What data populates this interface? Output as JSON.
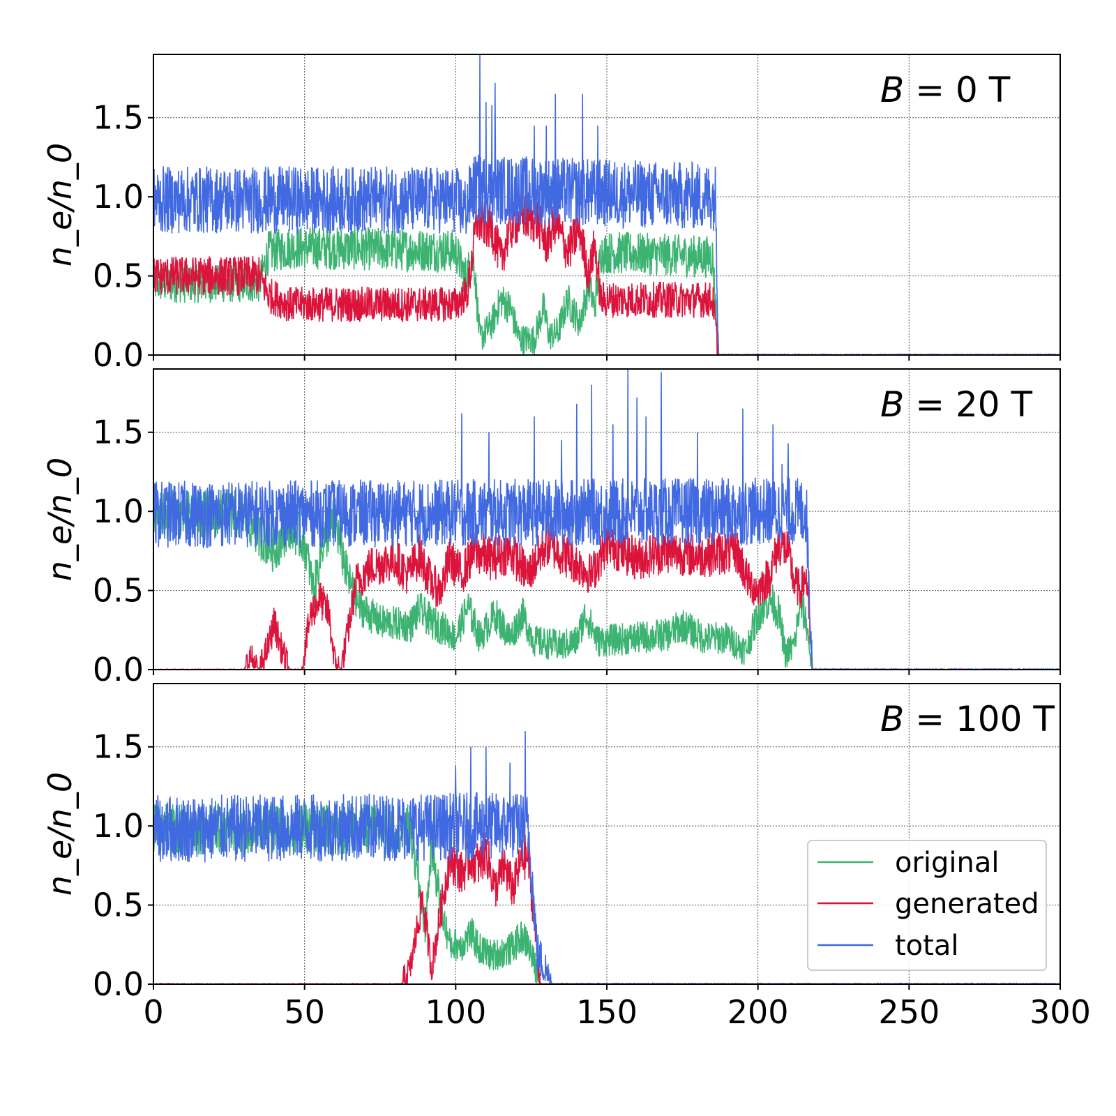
{
  "chart_data": [
    {
      "type": "line",
      "annotation": "B = 0 T",
      "ylabel": "n_e/n_0",
      "xlim": [
        0,
        300
      ],
      "ylim": [
        0,
        1.9
      ],
      "yticks": [
        "0.0",
        "0.5",
        "1.0",
        "1.5"
      ],
      "grid": true,
      "series": [
        {
          "name": "original",
          "color": "#3cb371",
          "points": [
            [
              0,
              0.45
            ],
            [
              35,
              0.45
            ],
            [
              38,
              0.65
            ],
            [
              45,
              0.68
            ],
            [
              100,
              0.66
            ],
            [
              103,
              0.5
            ],
            [
              106,
              0.6
            ],
            [
              108,
              0.1
            ],
            [
              112,
              0.2
            ],
            [
              115,
              0.35
            ],
            [
              118,
              0.3
            ],
            [
              121,
              0.1
            ],
            [
              126,
              0.1
            ],
            [
              129,
              0.3
            ],
            [
              131,
              0.12
            ],
            [
              134,
              0.15
            ],
            [
              137,
              0.35
            ],
            [
              141,
              0.2
            ],
            [
              144,
              0.45
            ],
            [
              146,
              0.3
            ],
            [
              148,
              0.65
            ],
            [
              185,
              0.62
            ],
            [
              187,
              0.0
            ],
            [
              300,
              0.0
            ]
          ]
        },
        {
          "name": "generated",
          "color": "#dc143c",
          "points": [
            [
              0,
              0.5
            ],
            [
              35,
              0.5
            ],
            [
              38,
              0.38
            ],
            [
              45,
              0.32
            ],
            [
              100,
              0.32
            ],
            [
              104,
              0.4
            ],
            [
              107,
              0.85
            ],
            [
              112,
              0.8
            ],
            [
              115,
              0.6
            ],
            [
              118,
              0.8
            ],
            [
              122,
              0.88
            ],
            [
              127,
              0.85
            ],
            [
              130,
              0.7
            ],
            [
              133,
              0.85
            ],
            [
              137,
              0.65
            ],
            [
              141,
              0.8
            ],
            [
              144,
              0.5
            ],
            [
              146,
              0.7
            ],
            [
              148,
              0.35
            ],
            [
              185,
              0.35
            ],
            [
              187,
              0.0
            ],
            [
              300,
              0.0
            ]
          ]
        },
        {
          "name": "total",
          "color": "#4169e1",
          "points": [
            [
              0,
              0.98
            ],
            [
              100,
              0.98
            ],
            [
              103,
              0.92
            ],
            [
              106,
              1.05
            ],
            [
              186,
              1.0
            ],
            [
              187,
              0.0
            ],
            [
              300,
              0.0
            ]
          ],
          "spikes": [
            [
              108,
              1.9
            ],
            [
              110,
              1.6
            ],
            [
              112,
              1.58
            ],
            [
              113,
              1.72
            ],
            [
              126,
              1.45
            ],
            [
              130,
              1.45
            ],
            [
              133,
              1.65
            ],
            [
              142,
              1.65
            ],
            [
              147,
              1.45
            ]
          ]
        }
      ]
    },
    {
      "type": "line",
      "annotation": "B = 20 T",
      "ylabel": "n_e/n_0",
      "xlim": [
        0,
        300
      ],
      "ylim": [
        0,
        1.9
      ],
      "yticks": [
        "0.0",
        "0.5",
        "1.0",
        "1.5"
      ],
      "grid": true,
      "series": [
        {
          "name": "original",
          "color": "#3cb371",
          "points": [
            [
              0,
              0.98
            ],
            [
              30,
              0.98
            ],
            [
              35,
              0.85
            ],
            [
              40,
              0.75
            ],
            [
              45,
              0.92
            ],
            [
              50,
              0.8
            ],
            [
              53,
              0.5
            ],
            [
              56,
              0.8
            ],
            [
              60,
              0.95
            ],
            [
              64,
              0.6
            ],
            [
              68,
              0.4
            ],
            [
              75,
              0.3
            ],
            [
              85,
              0.28
            ],
            [
              88,
              0.38
            ],
            [
              92,
              0.3
            ],
            [
              97,
              0.25
            ],
            [
              100,
              0.2
            ],
            [
              104,
              0.4
            ],
            [
              108,
              0.2
            ],
            [
              113,
              0.35
            ],
            [
              118,
              0.2
            ],
            [
              122,
              0.35
            ],
            [
              126,
              0.18
            ],
            [
              135,
              0.15
            ],
            [
              140,
              0.18
            ],
            [
              143,
              0.35
            ],
            [
              147,
              0.18
            ],
            [
              160,
              0.2
            ],
            [
              170,
              0.22
            ],
            [
              175,
              0.28
            ],
            [
              182,
              0.2
            ],
            [
              190,
              0.2
            ],
            [
              196,
              0.12
            ],
            [
              200,
              0.35
            ],
            [
              204,
              0.45
            ],
            [
              207,
              0.35
            ],
            [
              209,
              0.1
            ],
            [
              212,
              0.15
            ],
            [
              214,
              0.42
            ],
            [
              216,
              0.3
            ],
            [
              218,
              0.0
            ],
            [
              300,
              0.0
            ]
          ]
        },
        {
          "name": "generated",
          "color": "#dc143c",
          "points": [
            [
              0,
              0.0
            ],
            [
              30,
              0.0
            ],
            [
              32,
              0.08
            ],
            [
              35,
              0.0
            ],
            [
              38,
              0.15
            ],
            [
              40,
              0.3
            ],
            [
              42,
              0.15
            ],
            [
              45,
              0.0
            ],
            [
              49,
              0.0
            ],
            [
              52,
              0.35
            ],
            [
              55,
              0.45
            ],
            [
              58,
              0.35
            ],
            [
              60,
              0.05
            ],
            [
              62,
              0.0
            ],
            [
              64,
              0.2
            ],
            [
              67,
              0.55
            ],
            [
              72,
              0.65
            ],
            [
              80,
              0.7
            ],
            [
              84,
              0.6
            ],
            [
              88,
              0.72
            ],
            [
              92,
              0.55
            ],
            [
              95,
              0.5
            ],
            [
              98,
              0.7
            ],
            [
              102,
              0.6
            ],
            [
              106,
              0.75
            ],
            [
              112,
              0.7
            ],
            [
              118,
              0.75
            ],
            [
              124,
              0.6
            ],
            [
              130,
              0.8
            ],
            [
              138,
              0.7
            ],
            [
              145,
              0.6
            ],
            [
              150,
              0.8
            ],
            [
              160,
              0.7
            ],
            [
              170,
              0.75
            ],
            [
              180,
              0.72
            ],
            [
              193,
              0.75
            ],
            [
              197,
              0.55
            ],
            [
              200,
              0.5
            ],
            [
              204,
              0.6
            ],
            [
              207,
              0.8
            ],
            [
              210,
              0.75
            ],
            [
              212,
              0.55
            ],
            [
              214,
              0.5
            ],
            [
              216,
              0.6
            ],
            [
              218,
              0.0
            ],
            [
              300,
              0.0
            ]
          ]
        },
        {
          "name": "total",
          "color": "#4169e1",
          "points": [
            [
              0,
              0.98
            ],
            [
              216,
              1.0
            ],
            [
              218,
              0.0
            ],
            [
              300,
              0.0
            ]
          ],
          "spikes": [
            [
              102,
              1.62
            ],
            [
              111,
              1.5
            ],
            [
              126,
              1.6
            ],
            [
              135,
              1.45
            ],
            [
              140,
              1.68
            ],
            [
              145,
              1.8
            ],
            [
              152,
              1.55
            ],
            [
              157,
              1.9
            ],
            [
              160,
              1.72
            ],
            [
              163,
              1.6
            ],
            [
              168,
              1.88
            ],
            [
              180,
              1.5
            ],
            [
              195,
              1.65
            ],
            [
              205,
              1.55
            ],
            [
              208,
              1.3
            ],
            [
              210,
              1.43
            ]
          ]
        }
      ]
    },
    {
      "type": "line",
      "annotation": "B = 100 T",
      "ylabel": "n_e/n_0",
      "xlim": [
        0,
        300
      ],
      "ylim": [
        0,
        1.9
      ],
      "xticks": [
        "0",
        "50",
        "100",
        "150",
        "200",
        "250",
        "300"
      ],
      "yticks": [
        "0.0",
        "0.5",
        "1.0",
        "1.5"
      ],
      "grid": true,
      "legend": {
        "position": "lower-right",
        "entries": [
          "original",
          "generated",
          "total"
        ]
      },
      "series": [
        {
          "name": "original",
          "color": "#3cb371",
          "points": [
            [
              0,
              0.98
            ],
            [
              85,
              0.98
            ],
            [
              88,
              0.6
            ],
            [
              90,
              0.35
            ],
            [
              92,
              0.9
            ],
            [
              95,
              0.5
            ],
            [
              98,
              0.25
            ],
            [
              102,
              0.25
            ],
            [
              105,
              0.32
            ],
            [
              108,
              0.22
            ],
            [
              112,
              0.18
            ],
            [
              118,
              0.22
            ],
            [
              122,
              0.3
            ],
            [
              124,
              0.25
            ],
            [
              128,
              0.0
            ],
            [
              300,
              0.0
            ]
          ]
        },
        {
          "name": "generated",
          "color": "#dc143c",
          "points": [
            [
              0,
              0.0
            ],
            [
              82,
              0.0
            ],
            [
              85,
              0.1
            ],
            [
              89,
              0.55
            ],
            [
              92,
              0.1
            ],
            [
              95,
              0.45
            ],
            [
              98,
              0.8
            ],
            [
              102,
              0.7
            ],
            [
              105,
              0.8
            ],
            [
              108,
              0.75
            ],
            [
              110,
              0.85
            ],
            [
              113,
              0.6
            ],
            [
              116,
              0.75
            ],
            [
              119,
              0.6
            ],
            [
              122,
              0.8
            ],
            [
              124,
              0.8
            ],
            [
              128,
              0.0
            ],
            [
              300,
              0.0
            ]
          ]
        },
        {
          "name": "total",
          "color": "#4169e1",
          "points": [
            [
              0,
              0.98
            ],
            [
              124,
              1.0
            ],
            [
              127,
              0.2
            ],
            [
              132,
              0.0
            ],
            [
              300,
              0.0
            ]
          ],
          "spikes": [
            [
              100,
              1.38
            ],
            [
              105,
              1.5
            ],
            [
              110,
              1.5
            ],
            [
              118,
              1.4
            ],
            [
              123,
              1.6
            ]
          ]
        }
      ]
    }
  ]
}
